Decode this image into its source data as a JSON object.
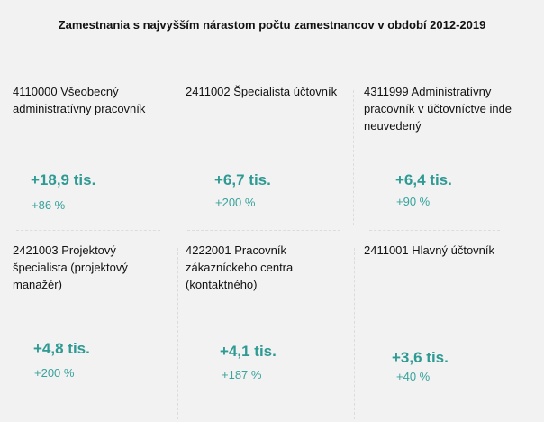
{
  "title": "Zamestnania s najvyšším nárastom počtu zamestnancov v období 2012-2019",
  "cards": [
    {
      "label": "4110000  Všeobecný administratívny pracovník",
      "value": "+18,9 tis.",
      "pct": "+86 %"
    },
    {
      "label": "2411002  Špecialista účtovník",
      "value": "+6,7 tis.",
      "pct": "+200 %"
    },
    {
      "label": "4311999  Administratívny pracovník v účtovníctve inde neuvedený",
      "value": "+6,4 tis.",
      "pct": "+90 %"
    },
    {
      "label": "2421003  Projektový špecialista (projektový manažér)",
      "value": "+4,8 tis.",
      "pct": "+200 %"
    },
    {
      "label": "4222001  Pracovník zákazníckeho centra (kontaktného)",
      "value": "+4,1 tis.",
      "pct": "+187 %"
    },
    {
      "label": "2411001  Hlavný účtovník",
      "value": "+3,6 tis.",
      "pct": "+40 %"
    }
  ]
}
